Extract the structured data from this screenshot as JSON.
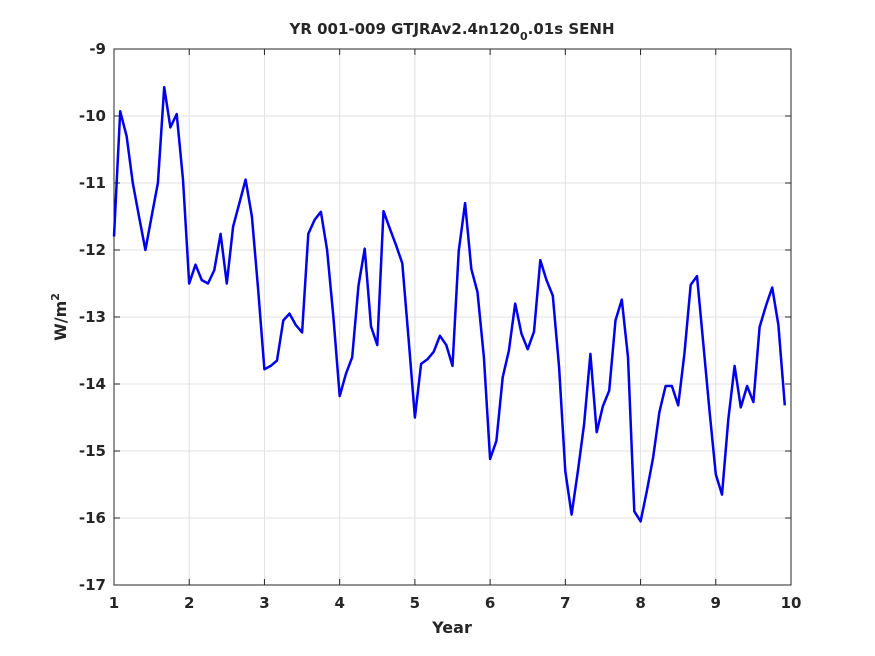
{
  "chart_data": {
    "type": "line",
    "title": "YR 001-009 GTJRAv2.4n120",
    "title_sub": "0",
    "title_suffix": ".01s SENH",
    "xlabel": "Year",
    "ylabel": "W/m",
    "ylabel_sup": "2",
    "xlim": [
      1,
      10
    ],
    "ylim": [
      -17,
      -9
    ],
    "xticks": [
      1,
      2,
      3,
      4,
      5,
      6,
      7,
      8,
      9,
      10
    ],
    "yticks": [
      -17,
      -16,
      -15,
      -14,
      -13,
      -12,
      -11,
      -10,
      -9
    ],
    "grid": true,
    "line_color": "#0000ee",
    "series": [
      {
        "x": [
          1.0,
          1.083,
          1.167,
          1.25,
          1.333,
          1.417,
          1.5,
          1.583,
          1.667,
          1.75,
          1.833,
          1.917,
          2.0,
          2.083,
          2.167,
          2.25,
          2.333,
          2.417,
          2.5,
          2.583,
          2.667,
          2.75,
          2.833,
          2.917,
          3.0,
          3.083,
          3.167,
          3.25,
          3.333,
          3.417,
          3.5,
          3.583,
          3.667,
          3.75,
          3.833,
          3.917,
          4.0,
          4.083,
          4.167,
          4.25,
          4.333,
          4.417,
          4.5,
          4.583,
          4.667,
          4.75,
          4.833,
          4.917,
          5.0,
          5.083,
          5.167,
          5.25,
          5.333,
          5.417,
          5.5,
          5.583,
          5.667,
          5.75,
          5.833,
          5.917,
          6.0,
          6.083,
          6.167,
          6.25,
          6.333,
          6.417,
          6.5,
          6.583,
          6.667,
          6.75,
          6.833,
          6.917,
          7.0,
          7.083,
          7.167,
          7.25,
          7.333,
          7.417,
          7.5,
          7.583,
          7.667,
          7.75,
          7.833,
          7.917,
          8.0,
          8.083,
          8.167,
          8.25,
          8.333,
          8.417,
          8.5,
          8.583,
          8.667,
          8.75,
          8.833,
          8.917,
          9.0,
          9.083,
          9.167,
          9.25,
          9.333,
          9.417,
          9.5,
          9.583,
          9.667,
          9.75,
          9.833,
          9.917
        ],
        "values": [
          -11.8,
          -9.93,
          -10.3,
          -11.0,
          -11.5,
          -12.0,
          -11.5,
          -11.0,
          -9.57,
          -10.17,
          -9.97,
          -10.95,
          -12.5,
          -12.22,
          -12.45,
          -12.5,
          -12.3,
          -11.76,
          -12.5,
          -11.65,
          -11.3,
          -10.95,
          -11.5,
          -12.6,
          -13.78,
          -13.73,
          -13.65,
          -13.05,
          -12.95,
          -13.12,
          -13.23,
          -11.76,
          -11.55,
          -11.43,
          -12.0,
          -13.0,
          -14.18,
          -13.85,
          -13.6,
          -12.53,
          -11.98,
          -13.14,
          -13.42,
          -11.42,
          -11.68,
          -11.93,
          -12.2,
          -13.33,
          -14.5,
          -13.7,
          -13.63,
          -13.52,
          -13.28,
          -13.42,
          -13.73,
          -12.02,
          -11.3,
          -12.28,
          -12.63,
          -13.6,
          -15.12,
          -14.85,
          -13.9,
          -13.5,
          -12.8,
          -13.25,
          -13.48,
          -13.22,
          -12.15,
          -12.45,
          -12.68,
          -13.75,
          -15.3,
          -15.95,
          -15.3,
          -14.6,
          -13.55,
          -14.72,
          -14.33,
          -14.1,
          -13.05,
          -12.74,
          -13.6,
          -15.9,
          -16.05,
          -15.6,
          -15.1,
          -14.42,
          -14.03,
          -14.03,
          -14.32,
          -13.55,
          -12.52,
          -12.39,
          -13.38,
          -14.4,
          -15.35,
          -15.65,
          -14.53,
          -13.73,
          -14.35,
          -14.03,
          -14.27,
          -13.15,
          -12.83,
          -12.56,
          -13.12,
          -14.32
        ]
      }
    ]
  }
}
